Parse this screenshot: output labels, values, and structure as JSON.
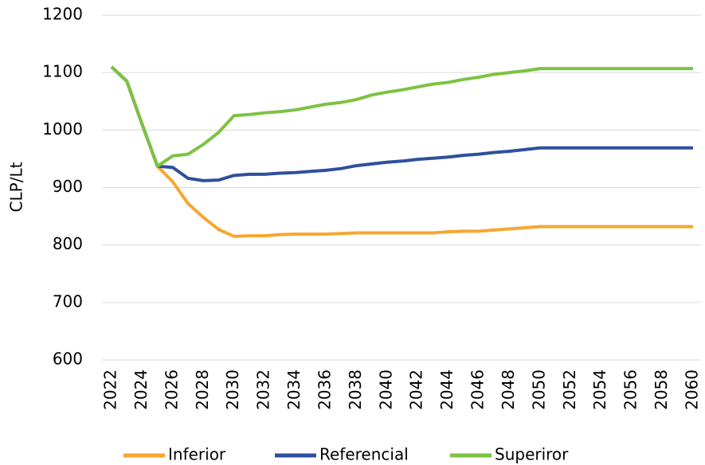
{
  "chart_data": {
    "type": "line",
    "y_label": "CLP/Lt",
    "x": [
      2022,
      2023,
      2024,
      2025,
      2026,
      2027,
      2028,
      2029,
      2030,
      2031,
      2032,
      2033,
      2034,
      2035,
      2036,
      2037,
      2038,
      2039,
      2040,
      2041,
      2042,
      2043,
      2044,
      2045,
      2046,
      2047,
      2048,
      2049,
      2050,
      2051,
      2052,
      2053,
      2054,
      2055,
      2056,
      2057,
      2058,
      2059,
      2060
    ],
    "xlim": [
      2022,
      2060
    ],
    "xticks": [
      2022,
      2024,
      2026,
      2028,
      2030,
      2032,
      2034,
      2036,
      2038,
      2040,
      2042,
      2044,
      2046,
      2048,
      2050,
      2052,
      2054,
      2056,
      2058,
      2060
    ],
    "ylim": [
      600,
      1200
    ],
    "yticks": [
      600,
      700,
      800,
      900,
      1000,
      1100,
      1200
    ],
    "grid": true,
    "legend": "bottom",
    "series": [
      {
        "name": "Inferior",
        "color": "#f7a631",
        "values": [
          1110,
          1085,
          1010,
          937,
          910,
          872,
          848,
          827,
          815,
          816,
          816,
          818,
          819,
          819,
          819,
          820,
          821,
          821,
          821,
          821,
          821,
          821,
          823,
          824,
          824,
          826,
          828,
          830,
          832,
          832,
          832,
          832,
          832,
          832,
          832,
          832,
          832,
          832,
          832
        ]
      },
      {
        "name": "Referencial",
        "color": "#2f4f9e",
        "values": [
          1110,
          1085,
          1010,
          937,
          935,
          916,
          912,
          913,
          921,
          923,
          923,
          925,
          926,
          928,
          930,
          933,
          938,
          941,
          944,
          946,
          949,
          951,
          953,
          956,
          958,
          961,
          963,
          966,
          969,
          969,
          969,
          969,
          969,
          969,
          969,
          969,
          969,
          969,
          969
        ]
      },
      {
        "name": "Superiror",
        "color": "#7dc242",
        "values": [
          1110,
          1085,
          1010,
          937,
          955,
          958,
          975,
          996,
          1025,
          1027,
          1030,
          1032,
          1035,
          1040,
          1045,
          1048,
          1053,
          1061,
          1066,
          1070,
          1075,
          1080,
          1083,
          1088,
          1092,
          1097,
          1100,
          1103,
          1107,
          1107,
          1107,
          1107,
          1107,
          1107,
          1107,
          1107,
          1107,
          1107,
          1107
        ]
      }
    ]
  }
}
